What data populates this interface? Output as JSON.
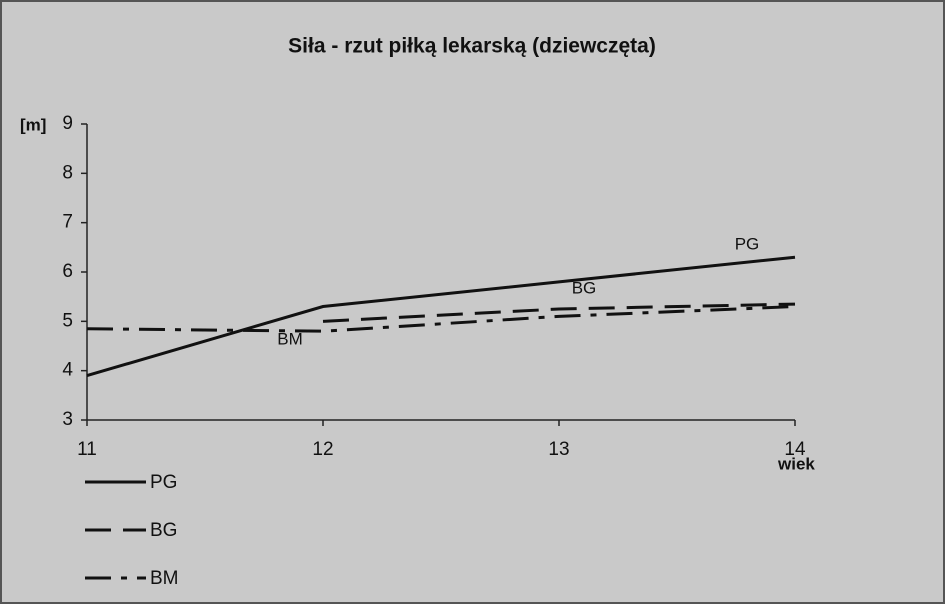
{
  "chart_data": {
    "type": "line",
    "title": "Siła - rzut piłką lekarską (dziewczęta)",
    "y_label": "[m]",
    "x_label": "wiek",
    "x": [
      11,
      12,
      13,
      14
    ],
    "series": [
      {
        "name": "PG",
        "color": "#111111",
        "style": "solid",
        "values": [
          3.9,
          5.3,
          5.8,
          6.3
        ]
      },
      {
        "name": "BG",
        "color": "#111111",
        "style": "dashed",
        "values": [
          null,
          5.0,
          5.25,
          5.35
        ]
      },
      {
        "name": "BM",
        "color": "#111111",
        "style": "dashdot",
        "values": [
          4.85,
          4.8,
          5.1,
          5.3
        ]
      }
    ],
    "xlim": [
      11,
      14
    ],
    "xticks": [
      11,
      12,
      13,
      14
    ],
    "ylim": [
      3,
      9
    ],
    "yticks": [
      3,
      4,
      5,
      6,
      7,
      8,
      9
    ],
    "legend": "bottom-left",
    "grid": false
  }
}
